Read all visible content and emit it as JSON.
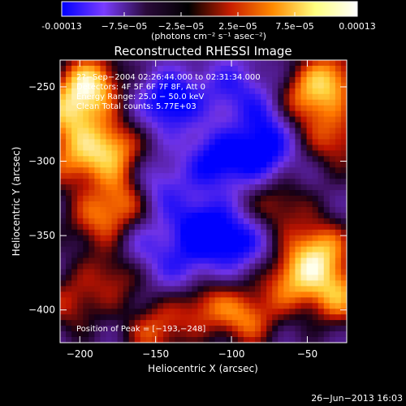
{
  "colorbar": {
    "tick_labels": [
      "-0.00013",
      "−7.5e−05",
      "−2.5e−05",
      "2.5e−05",
      "7.5e−05",
      "0.00013"
    ],
    "tick_values": [
      -0.00013,
      -7.5e-05,
      -2.5e-05,
      2.5e-05,
      7.5e-05,
      0.00013
    ],
    "range": [
      -0.00013,
      0.00013
    ],
    "unit_label": "(photons cm⁻² s⁻¹ asec⁻²)",
    "colormap": [
      "#0000ff",
      "#7a3cff",
      "#2a0a3a",
      "#000000",
      "#c81e00",
      "#ff8a00",
      "#ffff80",
      "#ffffff"
    ]
  },
  "chart_data": {
    "type": "heatmap",
    "title": "Reconstructed RHESSI Image",
    "xlabel": "Heliocentric X (arcsec)",
    "ylabel": "Heliocentric Y (arcsec)",
    "xlim": [
      -213,
      -24
    ],
    "ylim": [
      -422,
      -232
    ],
    "xticks": [
      -200,
      -150,
      -100,
      -50
    ],
    "yticks": [
      -250,
      -300,
      -350,
      -400
    ],
    "xtick_labels": [
      "−200",
      "−150",
      "−100",
      "−50"
    ],
    "ytick_labels": [
      "−250",
      "−300",
      "−350",
      "−400"
    ],
    "annotations": [
      "2?−Sep−2004 02:26:44.000 to 02:31:34.000",
      "Detectors: 4F 5F 6F 7F 8F, Att 0",
      "Energy Range: 25.0 − 50.0 keV",
      "Clean    Total counts: 5.77E+03"
    ],
    "peak_label": "Position of Peak = [−193,−248]",
    "peak_position": [
      -193,
      -248
    ],
    "blobs": [
      {
        "x": -193,
        "y": -248,
        "w": 1.0
      },
      {
        "x": -207,
        "y": -268,
        "w": 0.8
      },
      {
        "x": -180,
        "y": -292,
        "w": 0.9
      },
      {
        "x": -168,
        "y": -326,
        "w": 0.75
      },
      {
        "x": -205,
        "y": -300,
        "w": 0.6
      },
      {
        "x": -190,
        "y": -340,
        "w": 0.55
      },
      {
        "x": -35,
        "y": -245,
        "w": 0.85
      },
      {
        "x": -55,
        "y": -262,
        "w": 0.7
      },
      {
        "x": -30,
        "y": -285,
        "w": 0.6
      },
      {
        "x": -42,
        "y": -360,
        "w": 0.9
      },
      {
        "x": -30,
        "y": -390,
        "w": 0.8
      },
      {
        "x": -60,
        "y": -380,
        "w": 0.75
      },
      {
        "x": -90,
        "y": -405,
        "w": 0.7
      },
      {
        "x": -120,
        "y": -395,
        "w": 0.65
      },
      {
        "x": -175,
        "y": -375,
        "w": 0.55
      },
      {
        "x": -205,
        "y": -395,
        "w": 0.5
      },
      {
        "x": -150,
        "y": -415,
        "w": 0.6
      },
      {
        "x": -70,
        "y": -330,
        "w": 0.5
      },
      {
        "x": -140,
        "y": -260,
        "w": -0.9
      },
      {
        "x": -110,
        "y": -300,
        "w": -0.8
      },
      {
        "x": -80,
        "y": -295,
        "w": -0.75
      },
      {
        "x": -120,
        "y": -345,
        "w": -0.85
      },
      {
        "x": -95,
        "y": -355,
        "w": -0.7
      },
      {
        "x": -150,
        "y": -320,
        "w": -0.6
      },
      {
        "x": -130,
        "y": -375,
        "w": -0.5
      },
      {
        "x": -75,
        "y": -270,
        "w": -0.55
      },
      {
        "x": -160,
        "y": -360,
        "w": -0.45
      },
      {
        "x": -100,
        "y": -250,
        "w": -0.5
      }
    ]
  },
  "footer": {
    "timestamp": "26−Jun−2013 16:03"
  }
}
